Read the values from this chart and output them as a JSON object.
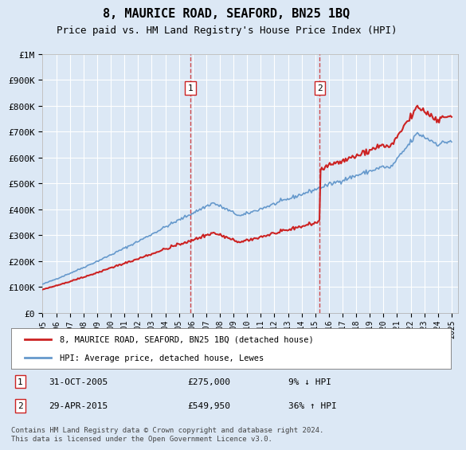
{
  "title": "8, MAURICE ROAD, SEAFORD, BN25 1BQ",
  "subtitle": "Price paid vs. HM Land Registry's House Price Index (HPI)",
  "background_color": "#dce8f5",
  "plot_bg_color": "#dce8f5",
  "grid_color": "#ffffff",
  "ylim": [
    0,
    1000000
  ],
  "yticks": [
    0,
    100000,
    200000,
    300000,
    400000,
    500000,
    600000,
    700000,
    800000,
    900000,
    1000000
  ],
  "ytick_labels": [
    "£0",
    "£100K",
    "£200K",
    "£300K",
    "£400K",
    "£500K",
    "£600K",
    "£700K",
    "£800K",
    "£900K",
    "£1M"
  ],
  "sale1_year": 2005.83,
  "sale1_price": 275000,
  "sale1_label": "1",
  "sale1_date": "31-OCT-2005",
  "sale1_pct": "9% ↓ HPI",
  "sale2_year": 2015.33,
  "sale2_price": 549950,
  "sale2_label": "2",
  "sale2_date": "29-APR-2015",
  "sale2_pct": "36% ↑ HPI",
  "legend_label1": "8, MAURICE ROAD, SEAFORD, BN25 1BQ (detached house)",
  "legend_label2": "HPI: Average price, detached house, Lewes",
  "footer": "Contains HM Land Registry data © Crown copyright and database right 2024.\nThis data is licensed under the Open Government Licence v3.0.",
  "hpi_color": "#6699cc",
  "price_color": "#cc2222",
  "dashed_line_color": "#cc2222",
  "xmin": 1995,
  "xmax": 2025.5
}
